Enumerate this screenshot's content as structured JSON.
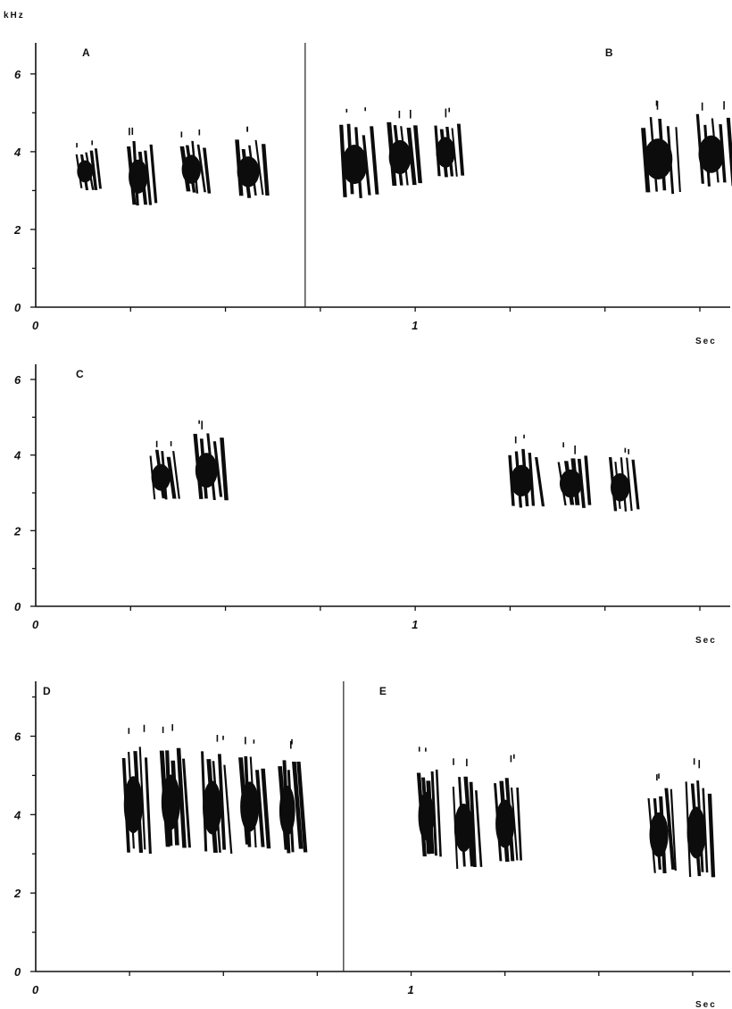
{
  "unit_label": "kHz",
  "chart_data": [
    {
      "type": "spectrogram",
      "panels": [
        "A",
        "B"
      ],
      "xlabel": "Sec",
      "ylabel": "kHz",
      "y_ticks": [
        "0",
        "2",
        "4",
        "6"
      ],
      "x_ticks": [
        "0",
        "1"
      ],
      "ylim": [
        0,
        6.8
      ],
      "xlim": [
        0,
        1.83
      ],
      "divider_x": 0.71,
      "syllables": [
        {
          "panel": "A",
          "t": 0.13,
          "dur": 0.05,
          "f_low": 3.0,
          "f_high": 4.3
        },
        {
          "panel": "A",
          "t": 0.27,
          "dur": 0.06,
          "f_low": 2.6,
          "f_high": 4.6
        },
        {
          "panel": "A",
          "t": 0.41,
          "dur": 0.06,
          "f_low": 2.9,
          "f_high": 4.6
        },
        {
          "panel": "A",
          "t": 0.56,
          "dur": 0.07,
          "f_low": 2.8,
          "f_high": 4.6
        },
        {
          "panel": "B",
          "t": 0.84,
          "dur": 0.08,
          "f_low": 2.8,
          "f_high": 5.1
        },
        {
          "panel": "B",
          "t": 0.96,
          "dur": 0.07,
          "f_low": 3.1,
          "f_high": 5.1
        },
        {
          "panel": "B",
          "t": 1.08,
          "dur": 0.06,
          "f_low": 3.3,
          "f_high": 5.1
        },
        {
          "panel": "B",
          "t": 1.64,
          "dur": 0.09,
          "f_low": 2.9,
          "f_high": 5.3
        },
        {
          "panel": "B",
          "t": 1.78,
          "dur": 0.08,
          "f_low": 3.1,
          "f_high": 5.3
        }
      ]
    },
    {
      "type": "spectrogram",
      "panels": [
        "C"
      ],
      "xlabel": "Sec",
      "ylabel": "kHz",
      "y_ticks": [
        "0",
        "2",
        "4",
        "6"
      ],
      "x_ticks": [
        "0",
        "1"
      ],
      "ylim": [
        0,
        6.4
      ],
      "xlim": [
        0,
        1.83
      ],
      "divider_x": null,
      "syllables": [
        {
          "panel": "C",
          "t": 0.33,
          "dur": 0.06,
          "f_low": 2.8,
          "f_high": 4.4
        },
        {
          "panel": "C",
          "t": 0.45,
          "dur": 0.07,
          "f_low": 2.8,
          "f_high": 4.9
        },
        {
          "panel": "C",
          "t": 1.28,
          "dur": 0.07,
          "f_low": 2.6,
          "f_high": 4.5
        },
        {
          "panel": "C",
          "t": 1.41,
          "dur": 0.07,
          "f_low": 2.6,
          "f_high": 4.3
        },
        {
          "panel": "C",
          "t": 1.54,
          "dur": 0.06,
          "f_low": 2.5,
          "f_high": 4.2
        }
      ]
    },
    {
      "type": "spectrogram",
      "panels": [
        "D",
        "E"
      ],
      "xlabel": "Sec",
      "ylabel": "kHz",
      "y_ticks": [
        "0",
        "2",
        "4",
        "6"
      ],
      "x_ticks": [
        "0",
        "1"
      ],
      "ylim": [
        0,
        7.4
      ],
      "xlim": [
        0,
        1.85
      ],
      "divider_x": 0.82,
      "syllables": [
        {
          "panel": "D",
          "t": 0.26,
          "dur": 0.06,
          "f_low": 3.0,
          "f_high": 6.3
        },
        {
          "panel": "D",
          "t": 0.36,
          "dur": 0.06,
          "f_low": 3.1,
          "f_high": 6.3
        },
        {
          "panel": "D",
          "t": 0.47,
          "dur": 0.06,
          "f_low": 3.0,
          "f_high": 6.1
        },
        {
          "panel": "D",
          "t": 0.57,
          "dur": 0.06,
          "f_low": 3.1,
          "f_high": 6.0
        },
        {
          "panel": "D",
          "t": 0.67,
          "dur": 0.05,
          "f_low": 3.0,
          "f_high": 5.9
        },
        {
          "panel": "E",
          "t": 1.04,
          "dur": 0.05,
          "f_low": 2.9,
          "f_high": 5.7
        },
        {
          "panel": "E",
          "t": 1.14,
          "dur": 0.06,
          "f_low": 2.6,
          "f_high": 5.4
        },
        {
          "panel": "E",
          "t": 1.25,
          "dur": 0.06,
          "f_low": 2.7,
          "f_high": 5.5
        },
        {
          "panel": "E",
          "t": 1.66,
          "dur": 0.06,
          "f_low": 2.5,
          "f_high": 5.1
        },
        {
          "panel": "E",
          "t": 1.76,
          "dur": 0.06,
          "f_low": 2.4,
          "f_high": 5.4
        }
      ]
    }
  ]
}
